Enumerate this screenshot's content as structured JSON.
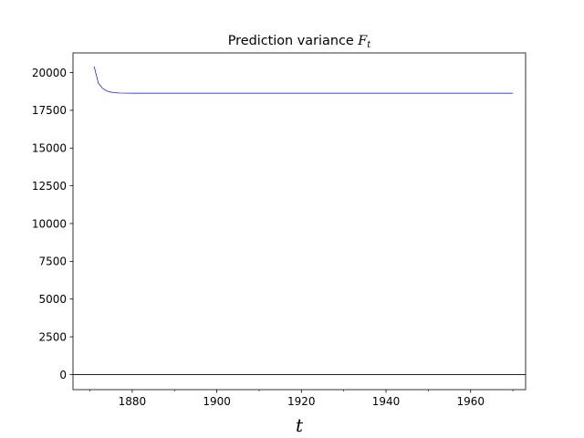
{
  "chart_data": {
    "type": "line",
    "title": "Prediction variance ",
    "title_math": "F",
    "title_sub": "t",
    "xlabel": "t",
    "ylabel": "",
    "xlim": [
      1866,
      1973
    ],
    "ylim": [
      -1000,
      21300
    ],
    "x_ticks": [
      1880,
      1900,
      1920,
      1940,
      1960
    ],
    "x_minor_ticks": [
      1870,
      1890,
      1910,
      1930,
      1950,
      1970
    ],
    "y_ticks": [
      0,
      2500,
      5000,
      7500,
      10000,
      12500,
      15000,
      17500,
      20000
    ],
    "grid": false,
    "legend": "none",
    "hline": {
      "y": 0,
      "color": "#000000"
    },
    "series": [
      {
        "color": "#0000ff",
        "x": [
          1871,
          1872,
          1873,
          1874,
          1875,
          1876,
          1877,
          1878,
          1880,
          1890,
          1900,
          1910,
          1920,
          1930,
          1940,
          1950,
          1960,
          1970
        ],
        "y": [
          20400,
          19300,
          18950,
          18780,
          18700,
          18660,
          18645,
          18638,
          18635,
          18635,
          18635,
          18635,
          18635,
          18635,
          18635,
          18635,
          18635,
          18635
        ]
      }
    ]
  }
}
